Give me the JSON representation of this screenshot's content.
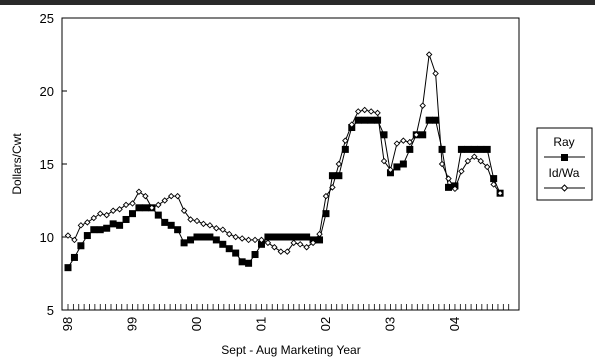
{
  "chart_data": {
    "type": "line",
    "xlabel": "Sept - Aug Marketing Year",
    "ylabel": "Dollars/Cwt",
    "ylim": [
      5,
      25
    ],
    "yticks": [
      5,
      10,
      15,
      20,
      25
    ],
    "xlim": [
      1998.0,
      2004.9
    ],
    "xtick_labels": [
      "98",
      "99",
      "00",
      "01",
      "02",
      "03",
      "04"
    ],
    "xtick_values": [
      1998.0,
      1999.0,
      2000.0,
      2001.0,
      2002.0,
      2003.0,
      2004.0
    ],
    "minor_ticks_per_year": 12,
    "grid": false,
    "legend": "right",
    "series": [
      {
        "name": "Ray",
        "marker": "square",
        "color": "#000000",
        "x": [
          1998.0,
          1998.1,
          1998.2,
          1998.3,
          1998.4,
          1998.5,
          1998.6,
          1998.7,
          1998.8,
          1998.9,
          1999.0,
          1999.1,
          1999.2,
          1999.3,
          1999.4,
          1999.5,
          1999.6,
          1999.7,
          1999.8,
          1999.9,
          2000.0,
          2000.1,
          2000.2,
          2000.3,
          2000.4,
          2000.5,
          2000.6,
          2000.7,
          2000.8,
          2000.9,
          2001.0,
          2001.1,
          2001.2,
          2001.3,
          2001.4,
          2001.5,
          2001.6,
          2001.7,
          2001.8,
          2001.9,
          2002.0,
          2002.1,
          2002.2,
          2002.3,
          2002.4,
          2002.5,
          2002.6,
          2002.7,
          2002.8,
          2002.9,
          2003.0,
          2003.1,
          2003.2,
          2003.3,
          2003.4,
          2003.5,
          2003.6,
          2003.7,
          2003.8,
          2003.9,
          2004.0,
          2004.1,
          2004.2,
          2004.3,
          2004.4,
          2004.5,
          2004.6,
          2004.7
        ],
        "values": [
          7.9,
          8.6,
          9.4,
          10.1,
          10.5,
          10.5,
          10.6,
          10.9,
          10.8,
          11.2,
          11.6,
          12.0,
          12.0,
          12.0,
          11.5,
          11.0,
          10.8,
          10.5,
          9.6,
          9.8,
          10.0,
          10.0,
          10.0,
          9.8,
          9.5,
          9.2,
          8.9,
          8.3,
          8.2,
          8.8,
          9.5,
          10.0,
          10.0,
          10.0,
          10.0,
          10.0,
          10.0,
          10.0,
          9.8,
          9.8,
          11.6,
          14.2,
          14.2,
          16.0,
          17.5,
          18.0,
          18.0,
          18.0,
          18.0,
          17.0,
          14.4,
          14.8,
          15.0,
          16.0,
          17.0,
          17.0,
          18.0,
          18.0,
          16.0,
          13.4,
          13.5,
          16.0,
          16.0,
          16.0,
          16.0,
          16.0,
          14.0,
          13.0
        ]
      },
      {
        "name": "Id/Wa",
        "marker": "diamond",
        "color": "#000000",
        "x": [
          1998.0,
          1998.1,
          1998.2,
          1998.3,
          1998.4,
          1998.5,
          1998.6,
          1998.7,
          1998.8,
          1998.9,
          1999.0,
          1999.1,
          1999.2,
          1999.3,
          1999.4,
          1999.5,
          1999.6,
          1999.7,
          1999.8,
          1999.9,
          2000.0,
          2000.1,
          2000.2,
          2000.3,
          2000.4,
          2000.5,
          2000.6,
          2000.7,
          2000.8,
          2000.9,
          2001.0,
          2001.1,
          2001.2,
          2001.3,
          2001.4,
          2001.5,
          2001.6,
          2001.7,
          2001.8,
          2001.9,
          2002.0,
          2002.1,
          2002.2,
          2002.3,
          2002.4,
          2002.5,
          2002.6,
          2002.7,
          2002.8,
          2002.9,
          2003.0,
          2003.1,
          2003.2,
          2003.3,
          2003.4,
          2003.5,
          2003.6,
          2003.7,
          2003.8,
          2003.9,
          2004.0,
          2004.1,
          2004.2,
          2004.3,
          2004.4,
          2004.5,
          2004.6,
          2004.7
        ],
        "values": [
          10.1,
          9.8,
          10.8,
          11.0,
          11.3,
          11.6,
          11.5,
          11.8,
          11.9,
          12.2,
          12.3,
          13.1,
          12.8,
          12.0,
          12.2,
          12.5,
          12.8,
          12.8,
          11.8,
          11.2,
          11.1,
          10.9,
          10.8,
          10.6,
          10.5,
          10.2,
          10.0,
          9.9,
          9.8,
          9.8,
          9.8,
          9.6,
          9.3,
          9.0,
          9.0,
          9.6,
          9.5,
          9.3,
          9.6,
          10.2,
          12.8,
          13.4,
          15.0,
          16.6,
          17.7,
          18.6,
          18.7,
          18.6,
          18.5,
          15.2,
          14.6,
          16.4,
          16.6,
          16.5,
          17.0,
          19.0,
          22.5,
          21.2,
          15.0,
          14.0,
          13.3,
          14.5,
          15.2,
          15.5,
          15.2,
          14.8,
          13.6,
          13.0
        ]
      }
    ]
  }
}
